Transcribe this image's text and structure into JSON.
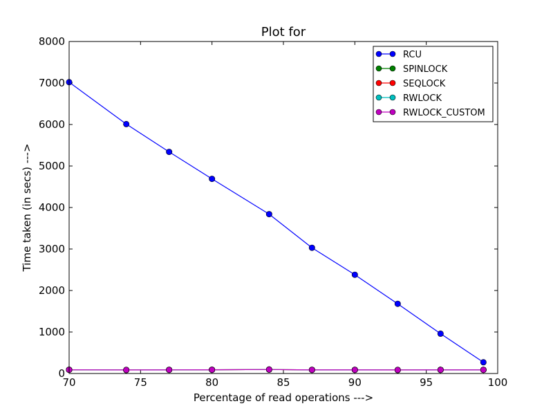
{
  "chart_data": {
    "type": "line",
    "title": "Plot for",
    "xlabel": "Percentage of read operations --->",
    "ylabel": "Time taken (in secs) --->",
    "xlim": [
      70,
      100
    ],
    "ylim": [
      0,
      8000
    ],
    "xticks": [
      "70",
      "75",
      "80",
      "85",
      "90",
      "95",
      "100"
    ],
    "yticks": [
      "0",
      "1000",
      "2000",
      "3000",
      "4000",
      "5000",
      "6000",
      "7000",
      "8000"
    ],
    "grid": false,
    "legend_position": "top-right",
    "x": [
      70,
      74,
      77,
      80,
      84,
      87,
      90,
      93,
      96,
      99
    ],
    "series": [
      {
        "name": "RCU",
        "color": "#0000ff",
        "values": [
          7020,
          6010,
          5340,
          4690,
          3840,
          3030,
          2380,
          1680,
          960,
          270
        ]
      },
      {
        "name": "SPINLOCK",
        "color": "#008000",
        "values": [
          90,
          85,
          88,
          90,
          95,
          88,
          88,
          85,
          88,
          88
        ]
      },
      {
        "name": "SEQLOCK",
        "color": "#ff0000",
        "values": [
          90,
          85,
          88,
          90,
          95,
          88,
          88,
          85,
          88,
          88
        ]
      },
      {
        "name": "RWLOCK",
        "color": "#00bfbf",
        "values": [
          90,
          85,
          88,
          90,
          95,
          88,
          88,
          85,
          88,
          88
        ]
      },
      {
        "name": "RWLOCK_CUSTOM",
        "color": "#bf00bf",
        "values": [
          90,
          85,
          88,
          90,
          95,
          88,
          88,
          85,
          88,
          88
        ]
      }
    ]
  }
}
